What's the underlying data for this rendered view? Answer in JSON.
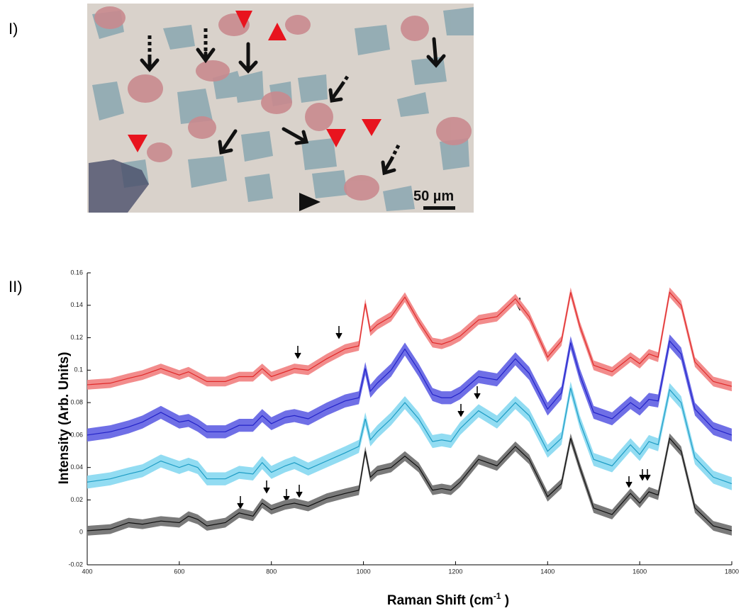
{
  "panels": {
    "top_label": "I)",
    "bottom_label": "II)",
    "scale_bar": "50 µm"
  },
  "chart_data": {
    "type": "line",
    "y_label": "Intensity (Arb. Units)",
    "x_label": "Raman Shift (cm",
    "x_label_sup": "-1",
    "x_label_end": " )",
    "x": [
      400,
      450,
      490,
      520,
      560,
      600,
      620,
      640,
      660,
      700,
      730,
      760,
      780,
      800,
      830,
      850,
      880,
      920,
      960,
      990,
      1004,
      1015,
      1030,
      1060,
      1090,
      1120,
      1150,
      1170,
      1190,
      1210,
      1250,
      1290,
      1330,
      1360,
      1400,
      1430,
      1450,
      1470,
      1500,
      1540,
      1580,
      1600,
      1620,
      1640,
      1665,
      1690,
      1720,
      1760,
      1800
    ],
    "xlim": [
      400,
      1800
    ],
    "xticks": [
      400,
      600,
      800,
      1000,
      1200,
      1400,
      1600,
      1800
    ],
    "ylim": [
      -0.02,
      0.16
    ],
    "yticks": [
      -0.02,
      0,
      0.02,
      0.04,
      0.06,
      0.08,
      0.1,
      0.12,
      0.14,
      0.16
    ],
    "series": [
      {
        "color": "#e02a2a",
        "band_color": "#f28c8c",
        "error": 0.003,
        "values": [
          0.091,
          0.092,
          0.095,
          0.097,
          0.101,
          0.097,
          0.099,
          0.096,
          0.093,
          0.093,
          0.096,
          0.096,
          0.101,
          0.096,
          0.099,
          0.101,
          0.1,
          0.107,
          0.113,
          0.115,
          0.141,
          0.124,
          0.128,
          0.133,
          0.145,
          0.13,
          0.117,
          0.116,
          0.118,
          0.121,
          0.131,
          0.133,
          0.144,
          0.133,
          0.108,
          0.118,
          0.148,
          0.127,
          0.103,
          0.099,
          0.108,
          0.104,
          0.11,
          0.108,
          0.148,
          0.14,
          0.105,
          0.093,
          0.09
        ]
      },
      {
        "color": "#2323c8",
        "band_color": "#6f6fe6",
        "error": 0.004,
        "values": [
          0.06,
          0.062,
          0.065,
          0.068,
          0.074,
          0.068,
          0.069,
          0.066,
          0.062,
          0.062,
          0.066,
          0.066,
          0.072,
          0.067,
          0.071,
          0.072,
          0.07,
          0.076,
          0.081,
          0.083,
          0.101,
          0.087,
          0.092,
          0.1,
          0.113,
          0.1,
          0.085,
          0.083,
          0.083,
          0.086,
          0.096,
          0.094,
          0.107,
          0.098,
          0.076,
          0.086,
          0.117,
          0.097,
          0.074,
          0.07,
          0.08,
          0.076,
          0.082,
          0.081,
          0.118,
          0.11,
          0.076,
          0.064,
          0.06
        ]
      },
      {
        "color": "#1e9cc4",
        "band_color": "#92dcf2",
        "error": 0.004,
        "values": [
          0.031,
          0.033,
          0.036,
          0.038,
          0.044,
          0.04,
          0.042,
          0.04,
          0.033,
          0.033,
          0.037,
          0.036,
          0.043,
          0.037,
          0.041,
          0.043,
          0.039,
          0.044,
          0.049,
          0.053,
          0.07,
          0.057,
          0.062,
          0.07,
          0.08,
          0.07,
          0.056,
          0.057,
          0.056,
          0.064,
          0.075,
          0.068,
          0.08,
          0.072,
          0.05,
          0.058,
          0.089,
          0.068,
          0.045,
          0.041,
          0.054,
          0.048,
          0.056,
          0.054,
          0.088,
          0.08,
          0.046,
          0.034,
          0.03
        ]
      },
      {
        "color": "#111111",
        "band_color": "#7a7a7a",
        "error": 0.003,
        "values": [
          0.001,
          0.002,
          0.006,
          0.005,
          0.007,
          0.006,
          0.01,
          0.008,
          0.004,
          0.006,
          0.012,
          0.01,
          0.018,
          0.014,
          0.017,
          0.018,
          0.016,
          0.021,
          0.024,
          0.026,
          0.05,
          0.034,
          0.038,
          0.04,
          0.047,
          0.04,
          0.026,
          0.027,
          0.026,
          0.031,
          0.045,
          0.041,
          0.053,
          0.045,
          0.022,
          0.03,
          0.058,
          0.04,
          0.015,
          0.011,
          0.024,
          0.018,
          0.025,
          0.023,
          0.058,
          0.05,
          0.015,
          0.004,
          0.001
        ]
      }
    ]
  }
}
